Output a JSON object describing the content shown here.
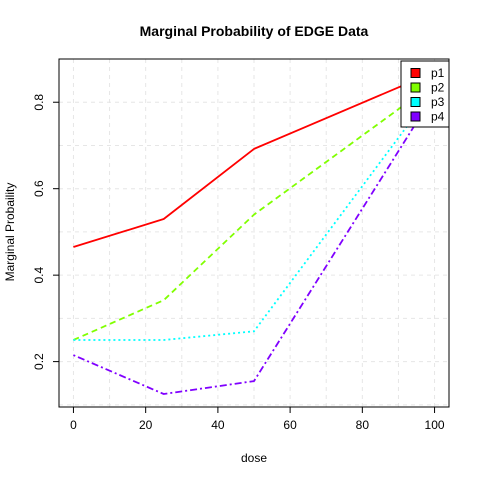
{
  "chart_data": {
    "type": "line",
    "title": "Marginal Probability of EDGE Data",
    "xlabel": "dose",
    "ylabel": "Marginal Probaility",
    "xlim": [
      -4,
      104
    ],
    "ylim": [
      0.095,
      0.9
    ],
    "x_ticks": [
      0,
      20,
      40,
      60,
      80,
      100
    ],
    "x_tick_labels": [
      "0",
      "20",
      "40",
      "60",
      "80",
      "100"
    ],
    "y_ticks": [
      0.2,
      0.4,
      0.6,
      0.8
    ],
    "y_tick_labels": [
      "0.2",
      "0.4",
      "0.6",
      "0.8"
    ],
    "grid": true,
    "legend_position": "top-right",
    "x": [
      0,
      25,
      50,
      100
    ],
    "series": [
      {
        "name": "p1",
        "values": [
          0.465,
          0.53,
          0.692,
          0.87
        ],
        "color": "#FF0000",
        "dash": "solid"
      },
      {
        "name": "p2",
        "values": [
          0.25,
          0.342,
          0.54,
          0.845
        ],
        "color": "#80FF00",
        "dash": "dashed"
      },
      {
        "name": "p3",
        "values": [
          0.25,
          0.25,
          0.27,
          0.83
        ],
        "color": "#00FFFF",
        "dash": "dotted"
      },
      {
        "name": "p4",
        "values": [
          0.215,
          0.125,
          0.155,
          0.82
        ],
        "color": "#8000FF",
        "dash": "dotdash"
      }
    ]
  }
}
